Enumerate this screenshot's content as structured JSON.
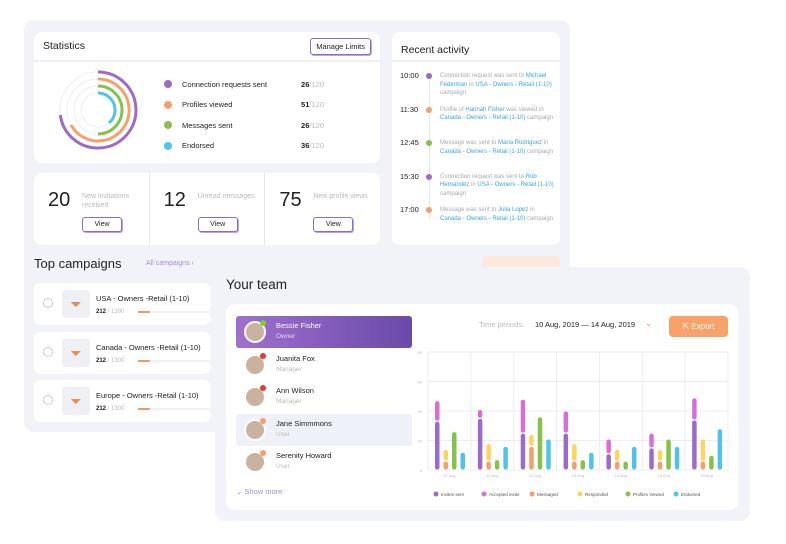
{
  "statistics": {
    "title": "Statistics",
    "manage_limits": "Manage Limits",
    "items": [
      {
        "label": "Connection requests sent",
        "value": "26",
        "max": "/120",
        "color": "#9b6bcc"
      },
      {
        "label": "Profiles viewed",
        "value": "51",
        "max": "/120",
        "color": "#f4a06a"
      },
      {
        "label": "Messages sent",
        "value": "26",
        "max": "/120",
        "color": "#86c24a"
      },
      {
        "label": "Endorsed",
        "value": "36",
        "max": "/120",
        "color": "#4fc3ea"
      }
    ]
  },
  "counters": [
    {
      "number": "20",
      "label": "New invitations received",
      "button": "View"
    },
    {
      "number": "12",
      "label": "Unread messages",
      "button": "View"
    },
    {
      "number": "75",
      "label": "New profile views",
      "button": "View"
    }
  ],
  "activity": {
    "title": "Recent activity",
    "items": [
      {
        "time": "10:00",
        "color": "#9b6bcc",
        "parts": [
          "Connection request was sent to ",
          "Michael Federman",
          " in ",
          "USA - Owners - Retail (1-10)",
          " campaign"
        ]
      },
      {
        "time": "11:30",
        "color": "#f4a06a",
        "parts": [
          "Profile of ",
          "Hannah Fisher",
          " was viewed in ",
          "Canada - Owners - Retail (1-10)",
          " campaign"
        ]
      },
      {
        "time": "12:45",
        "color": "#86c24a",
        "parts": [
          "Message was sent to ",
          "Maria Rodriguez",
          " in ",
          "Canada - Owners - Retail (1-10)",
          " campaign"
        ]
      },
      {
        "time": "15:30",
        "color": "#9b6bcc",
        "parts": [
          "Connection request was sent to ",
          "Rob Hernandez",
          " in ",
          "USA - Owners - Retail (1-10)",
          " campaign"
        ]
      },
      {
        "time": "17:00",
        "color": "#f4a06a",
        "parts": [
          "Message was sent to ",
          "Julia Lopez",
          " in ",
          "Canada - Owners - Retail (1-10)",
          " campaign"
        ]
      }
    ]
  },
  "campaigns": {
    "title": "Top campaigns",
    "all_link": "All campaigns ›",
    "items": [
      {
        "name": "USA - Owners -Retail (1-10)",
        "done": "212",
        "total": " / 1300",
        "progress": 0.163
      },
      {
        "name": "Canada - Owners -Retail (1-10)",
        "done": "212",
        "total": " / 1300",
        "progress": 0.163
      },
      {
        "name": "Europe - Owners -Retail (1-10)",
        "done": "212",
        "total": " / 1300",
        "progress": 0.163
      }
    ]
  },
  "team": {
    "title": "Your team",
    "show_more": "Show more",
    "time_label": "Time periods:",
    "time_value": "10 Aug, 2019 — 14 Aug, 2019",
    "export": "Export",
    "members": [
      {
        "name": "Bessie Fisher",
        "role": "Owner",
        "status": "#7ed321"
      },
      {
        "name": "Juanita Fox",
        "role": "Manager",
        "status": "#e53935"
      },
      {
        "name": "Ann Wilson",
        "role": "Manager",
        "status": "#e53935"
      },
      {
        "name": "Jane Simmmons",
        "role": "User",
        "status": "#f4a06a"
      },
      {
        "name": "Serenity Howard",
        "role": "User",
        "status": "#f4a06a"
      }
    ]
  },
  "chart_data": {
    "type": "bar",
    "ylim": [
      0,
      80
    ],
    "yticks": [
      "0",
      "20",
      "40",
      "60",
      "80"
    ],
    "categories": [
      "10 Aug",
      "11 Aug",
      "12 Aug",
      "13 Aug",
      "14 Aug",
      "15 Aug",
      "16 Aug"
    ],
    "series": [
      {
        "name": "Invites sent",
        "color": "#9b6bcc",
        "values": [
          33,
          35,
          25,
          25,
          11,
          15,
          34
        ]
      },
      {
        "name": "Accepted invite",
        "color": "#d670d6",
        "values": [
          14,
          6,
          23,
          15,
          10,
          10,
          15
        ],
        "stacked_on": "Invites sent"
      },
      {
        "name": "Messaged",
        "color": "#f4a06a",
        "values": [
          6,
          6,
          16,
          6,
          6,
          6,
          6
        ]
      },
      {
        "name": "Responded",
        "color": "#ffd45e",
        "values": [
          8,
          12,
          8,
          12,
          8,
          8,
          15
        ],
        "stacked_on": "Messaged"
      },
      {
        "name": "Profiles Viewed",
        "color": "#86c24a",
        "values": [
          26,
          7,
          36,
          7,
          6,
          21,
          10
        ]
      },
      {
        "name": "Endorsed",
        "color": "#4fc3ea",
        "values": [
          12,
          16,
          21,
          12,
          16,
          16,
          28
        ]
      }
    ]
  }
}
